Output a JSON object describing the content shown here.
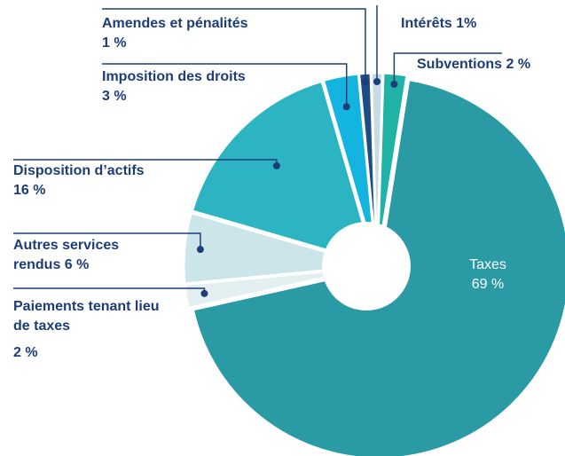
{
  "chart_data": {
    "type": "pie",
    "categories": [
      "Intérêts",
      "Subventions",
      "Taxes",
      "Paiements tenant lieu de taxes",
      "Autres services rendus",
      "Disposition d’actifs",
      "Imposition des droits",
      "Amendes et pénalités"
    ],
    "values": [
      1,
      2,
      69,
      2,
      6,
      16,
      3,
      1
    ],
    "value_labels": [
      "1%",
      "2 %",
      "69 %",
      "2 %",
      "6 %",
      "16 %",
      "3 %",
      "1 %"
    ],
    "colors": [
      "#c6dbe4",
      "#1fb3a6",
      "#2a9aa4",
      "#e3eff1",
      "#cbe5e8",
      "#2cb4c3",
      "#13b5e0",
      "#1e4c86"
    ]
  }
}
